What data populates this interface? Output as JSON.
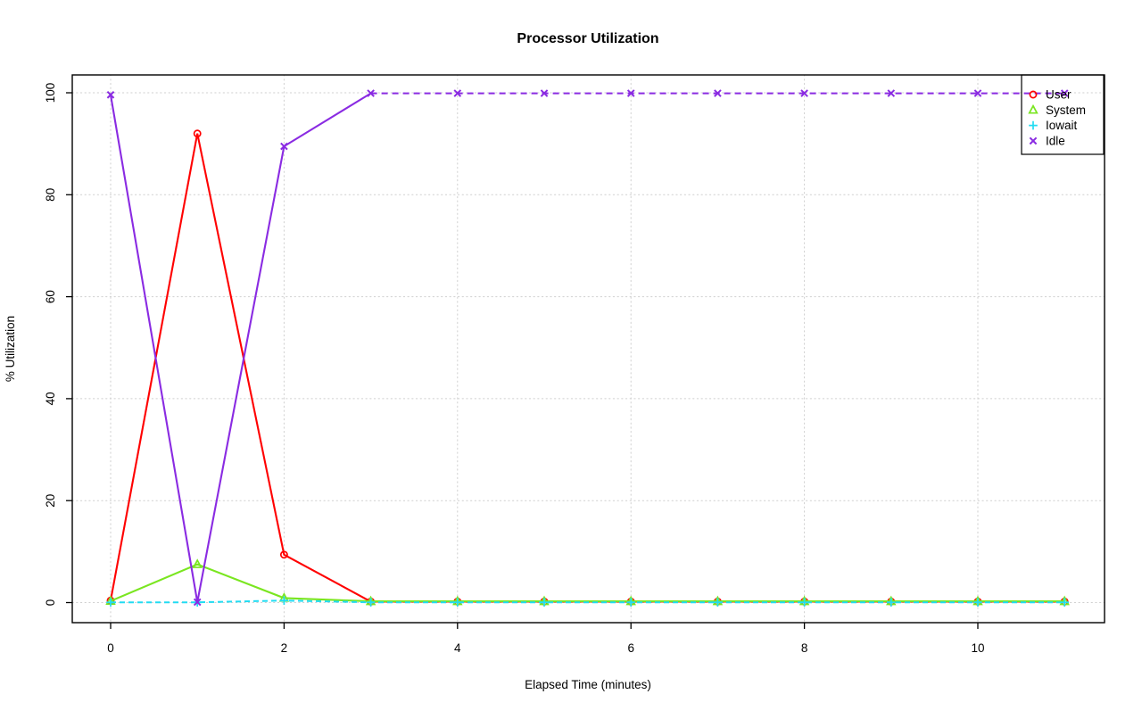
{
  "chart_data": {
    "type": "line",
    "title": "Processor Utilization",
    "xlabel": "Elapsed Time (minutes)",
    "ylabel": "% Utilization",
    "xlim": [
      0,
      11
    ],
    "ylim": [
      0,
      100
    ],
    "x_ticks": [
      0,
      2,
      4,
      6,
      8,
      10
    ],
    "y_ticks": [
      0,
      20,
      40,
      60,
      80,
      100
    ],
    "grid": "dotted",
    "grid_color": "#CFCFCF",
    "axis_color": "#000000",
    "legend_position": "top-right",
    "x": [
      0,
      1,
      2,
      3,
      4,
      5,
      6,
      7,
      8,
      9,
      10,
      11
    ],
    "series": [
      {
        "name": "User",
        "color": "#FF0000",
        "marker": "circle",
        "line": "solid",
        "values": [
          0.4,
          92,
          9.4,
          0.2,
          0.2,
          0.2,
          0.2,
          0.2,
          0.2,
          0.2,
          0.2,
          0.2
        ]
      },
      {
        "name": "System",
        "color": "#7AE620",
        "marker": "triangle",
        "line": "solid",
        "values": [
          0.3,
          7.5,
          0.9,
          0.25,
          0.25,
          0.25,
          0.25,
          0.25,
          0.25,
          0.25,
          0.25,
          0.25
        ]
      },
      {
        "name": "Iowait",
        "color": "#22DCF2",
        "marker": "plus",
        "line": "dashed",
        "values": [
          0.05,
          0.05,
          0.4,
          0.05,
          0.05,
          0.05,
          0.05,
          0.05,
          0.05,
          0.05,
          0.05,
          0.05
        ]
      },
      {
        "name": "Idle",
        "color": "#8A2BE2",
        "marker": "x",
        "line": "solid",
        "dash_from_index": 3,
        "values": [
          99.6,
          0.1,
          89.5,
          99.9,
          99.9,
          99.9,
          99.9,
          99.9,
          99.9,
          99.9,
          99.9,
          99.9
        ]
      }
    ]
  }
}
